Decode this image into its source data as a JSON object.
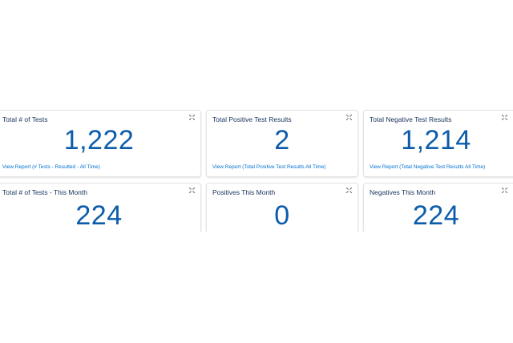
{
  "cards": [
    {
      "title": "Total # of Tests",
      "value": "1,222",
      "link": "View Report (# Tests - Resulted - All Time)"
    },
    {
      "title": "Total Positive Test Results",
      "value": "2",
      "link": "View Report (Total Positive Test Results All Time)"
    },
    {
      "title": "Total Negative Test Results",
      "value": "1,214",
      "link": "View Report (Total Negative Test Results All Time)"
    },
    {
      "title": "Total # of Tests - This Month",
      "value": "224"
    },
    {
      "title": "Positives This Month",
      "value": "0"
    },
    {
      "title": "Negatives This Month",
      "value": "224"
    }
  ],
  "icons": {
    "expand": "expand-icon"
  },
  "colors": {
    "value": "#0b5cab",
    "link": "#0070d2",
    "title": "#16325c"
  }
}
